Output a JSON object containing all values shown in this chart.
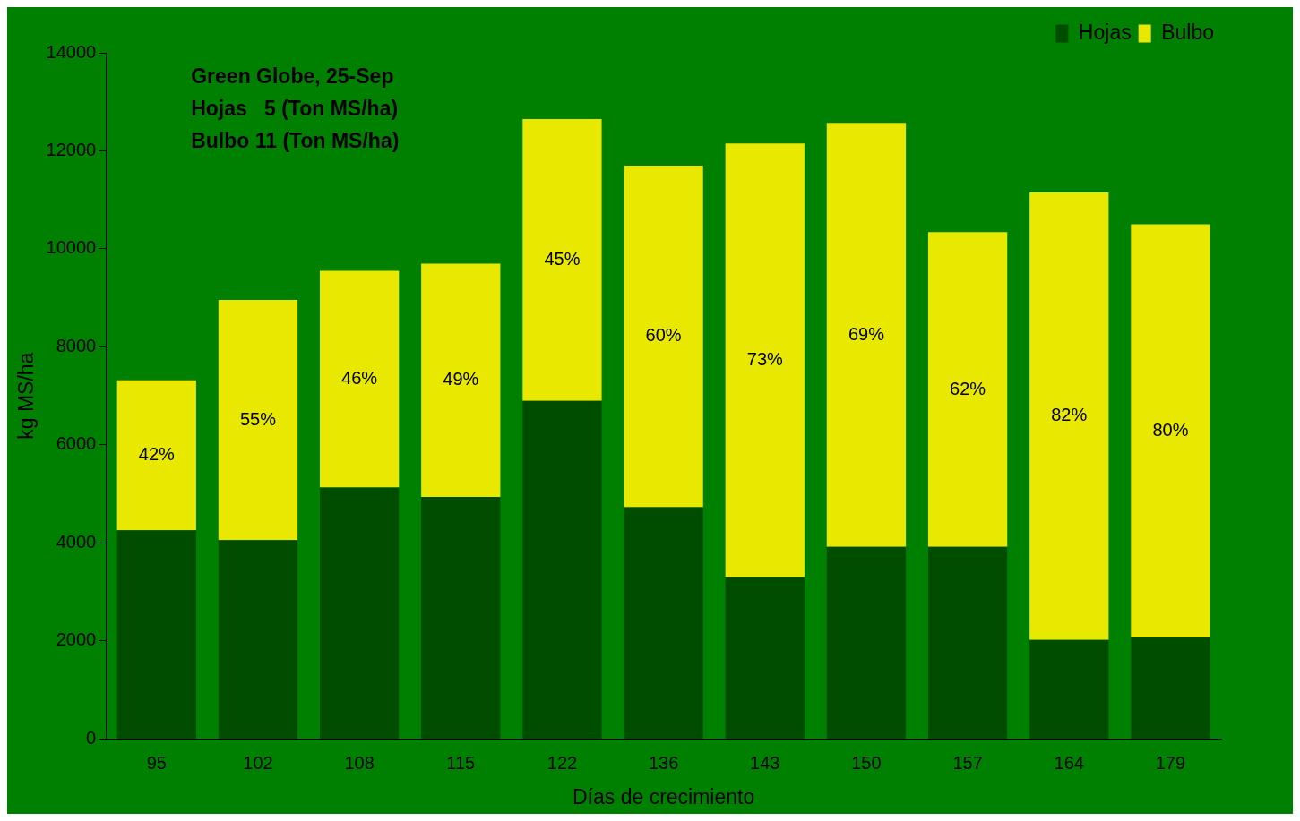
{
  "chart_data": {
    "type": "bar",
    "stacked": true,
    "xlabel": "Días de crecimiento",
    "ylabel": "kg MS/ha",
    "categories": [
      "95",
      "102",
      "108",
      "115",
      "122",
      "136",
      "143",
      "150",
      "157",
      "164",
      "179"
    ],
    "series": [
      {
        "name": "Hojas",
        "color": "#004d00",
        "values": [
          4260,
          4060,
          5130,
          4940,
          6900,
          4730,
          3300,
          3920,
          3920,
          2020,
          2070
        ]
      },
      {
        "name": "Bulbo",
        "color": "#e8e800",
        "values": [
          3060,
          4900,
          4420,
          4760,
          5750,
          6970,
          8850,
          8650,
          6420,
          9130,
          8430
        ]
      }
    ],
    "ylim": [
      0,
      14000
    ],
    "yticks": [
      0,
      2000,
      4000,
      6000,
      8000,
      10000,
      12000,
      14000
    ],
    "grid": false,
    "legend": "top right",
    "annotations": [
      "Green Globe, 25-Sep",
      "Hojas   5 (Ton MS/ha)",
      "Bulbo 11 (Ton MS/ha)",
      "42%",
      "55%",
      "46%",
      "49%",
      "45%",
      "60%",
      "73%",
      "69%",
      "62%",
      "82%",
      "80%"
    ]
  }
}
